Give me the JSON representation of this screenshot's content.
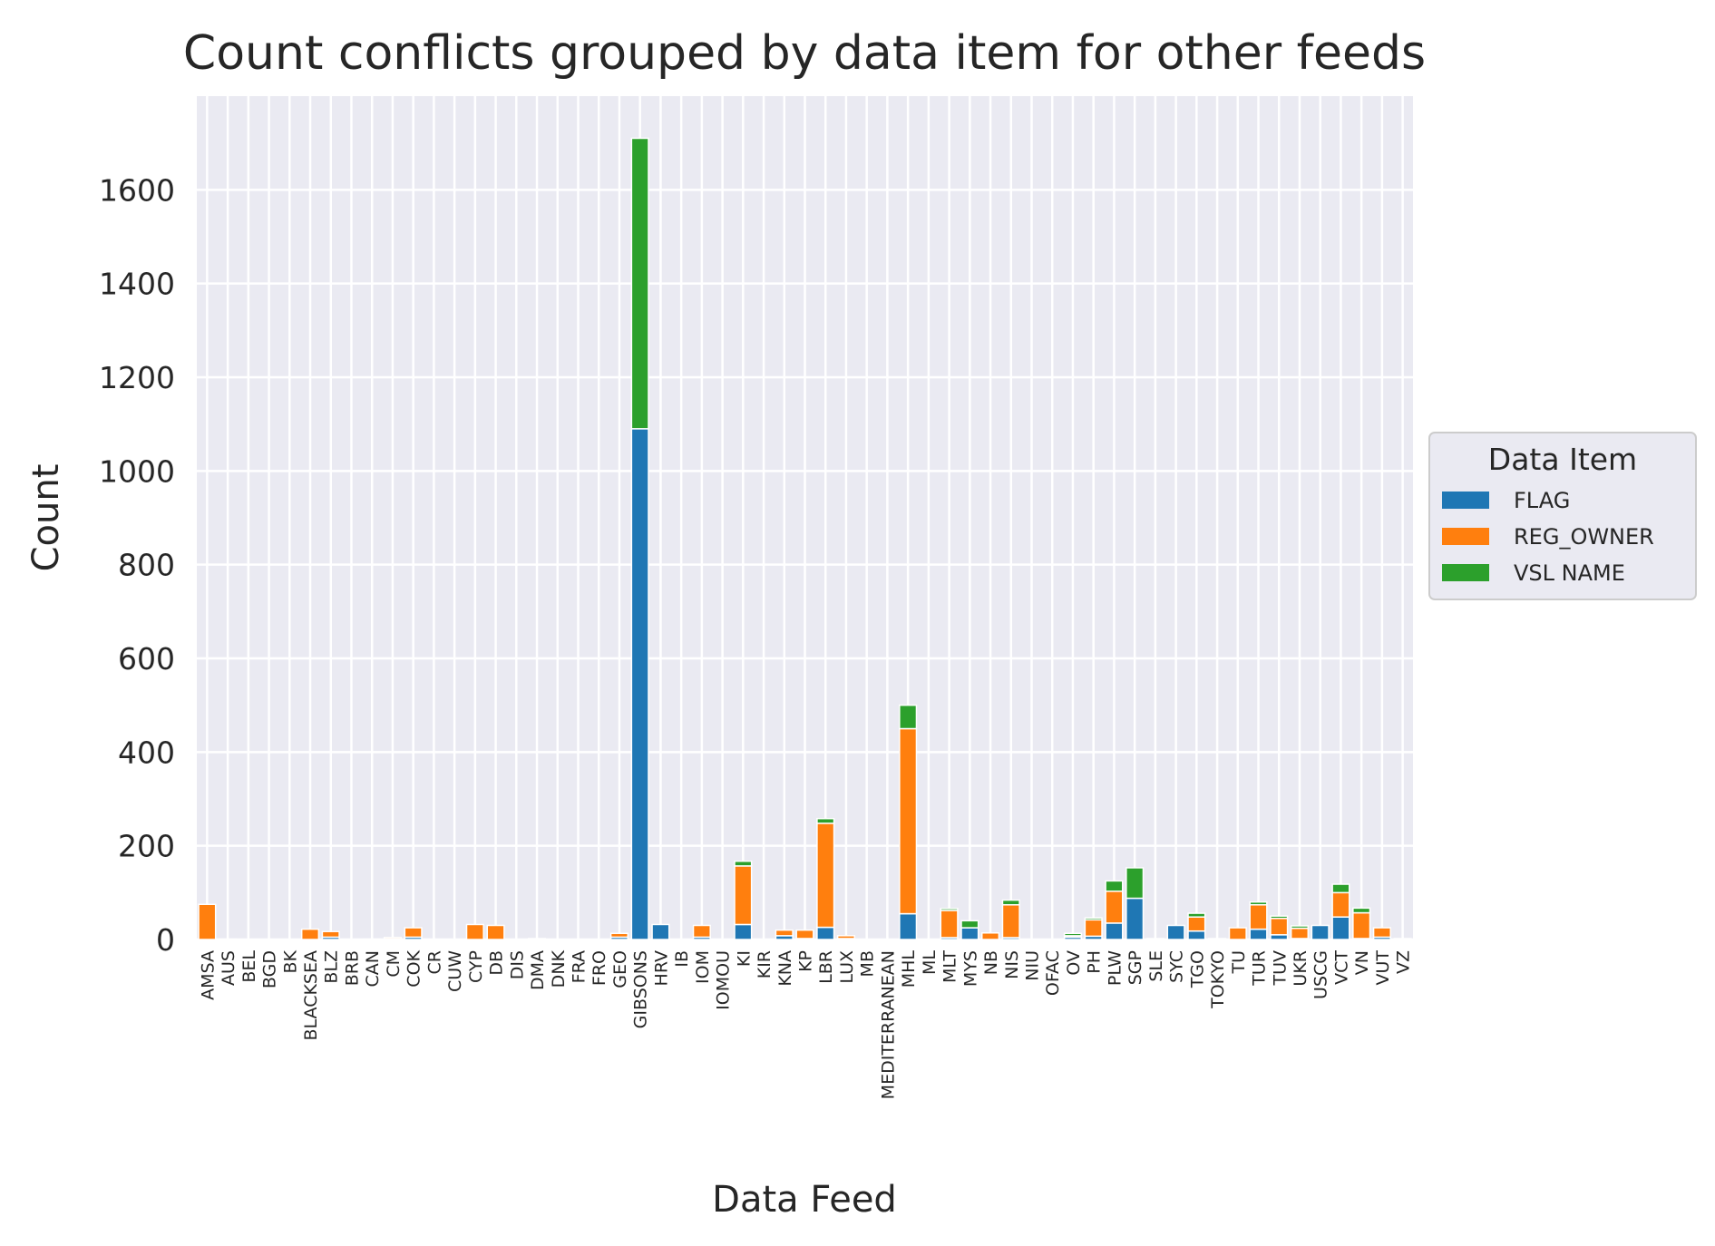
{
  "chart_data": {
    "type": "bar",
    "stacked": true,
    "title": "Count conflicts grouped by data item for other feeds",
    "xlabel": "Data Feed",
    "ylabel": "Count",
    "ylim": [
      0,
      1800
    ],
    "yticks": [
      0,
      200,
      400,
      600,
      800,
      1000,
      1200,
      1400,
      1600
    ],
    "grid": true,
    "legend": {
      "title": "Data Item",
      "placement": "right-outside"
    },
    "categories": [
      "AMSA",
      "AUS",
      "BEL",
      "BGD",
      "BK",
      "BLACKSEA",
      "BLZ",
      "BRB",
      "CAN",
      "CM",
      "COK",
      "CR",
      "CUW",
      "CYP",
      "DB",
      "DIS",
      "DMA",
      "DNK",
      "FRA",
      "FRO",
      "GEO",
      "GIBSONS",
      "HRV",
      "IB",
      "IOM",
      "IOMOU",
      "KI",
      "KIR",
      "KNA",
      "KP",
      "LBR",
      "LUX",
      "MB",
      "MEDITERRANEAN",
      "MHL",
      "ML",
      "MLT",
      "MYS",
      "NB",
      "NIS",
      "NIU",
      "OFAC",
      "OV",
      "PH",
      "PLW",
      "SGP",
      "SLE",
      "SYC",
      "TGO",
      "TOKYO",
      "TU",
      "TUR",
      "TUV",
      "UKR",
      "USCG",
      "VCT",
      "VN",
      "VUT",
      "VZ"
    ],
    "series": [
      {
        "name": "FLAG",
        "color": "#1f77b4",
        "values": [
          0,
          1,
          0,
          0,
          0,
          0,
          5,
          0,
          1,
          1,
          5,
          0,
          0,
          0,
          0,
          0,
          2,
          0,
          0,
          0,
          5,
          1090,
          32,
          0,
          5,
          0,
          32,
          0,
          8,
          2,
          26,
          2,
          0,
          0,
          55,
          0,
          4,
          25,
          0,
          4,
          0,
          0,
          5,
          7,
          35,
          88,
          2,
          30,
          18,
          2,
          0,
          22,
          10,
          2,
          30,
          48,
          2,
          5,
          2
        ]
      },
      {
        "name": "REG_OWNER",
        "color": "#ff7f0e",
        "values": [
          75,
          0,
          0,
          0,
          0,
          22,
          12,
          0,
          0,
          3,
          20,
          0,
          0,
          32,
          30,
          0,
          0,
          0,
          0,
          0,
          8,
          0,
          0,
          0,
          25,
          0,
          125,
          0,
          12,
          18,
          222,
          6,
          0,
          0,
          395,
          0,
          58,
          0,
          14,
          70,
          0,
          0,
          3,
          35,
          68,
          0,
          0,
          0,
          30,
          0,
          25,
          52,
          35,
          22,
          0,
          52,
          55,
          20,
          0
        ]
      },
      {
        "name": "VSL NAME",
        "color": "#2ca02c",
        "values": [
          0,
          0,
          0,
          0,
          0,
          0,
          0,
          0,
          0,
          0,
          0,
          0,
          0,
          0,
          0,
          0,
          0,
          0,
          0,
          0,
          0,
          620,
          0,
          0,
          0,
          0,
          10,
          0,
          0,
          0,
          10,
          0,
          0,
          0,
          50,
          0,
          4,
          15,
          0,
          10,
          0,
          0,
          5,
          4,
          22,
          65,
          0,
          0,
          8,
          0,
          0,
          6,
          5,
          5,
          0,
          18,
          10,
          0,
          0
        ]
      }
    ]
  }
}
